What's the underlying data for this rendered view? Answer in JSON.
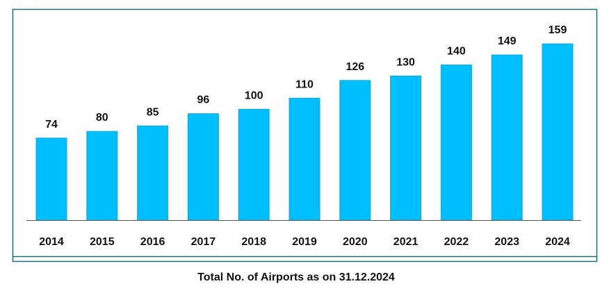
{
  "chart_data": {
    "type": "bar",
    "title": "Total No. of Airports as on 31.12.2024",
    "categories": [
      "2014",
      "2015",
      "2016",
      "2017",
      "2018",
      "2019",
      "2020",
      "2021",
      "2022",
      "2023",
      "2024"
    ],
    "values": [
      74,
      80,
      85,
      96,
      100,
      110,
      126,
      130,
      140,
      149,
      159
    ],
    "ylim": [
      0,
      175
    ],
    "grid": false,
    "data_labels": true,
    "colors": {
      "bar": "#00BFFF",
      "bar_edge": "#1AA6D6",
      "frame": "#1F6E78",
      "axis": "#555555"
    }
  }
}
